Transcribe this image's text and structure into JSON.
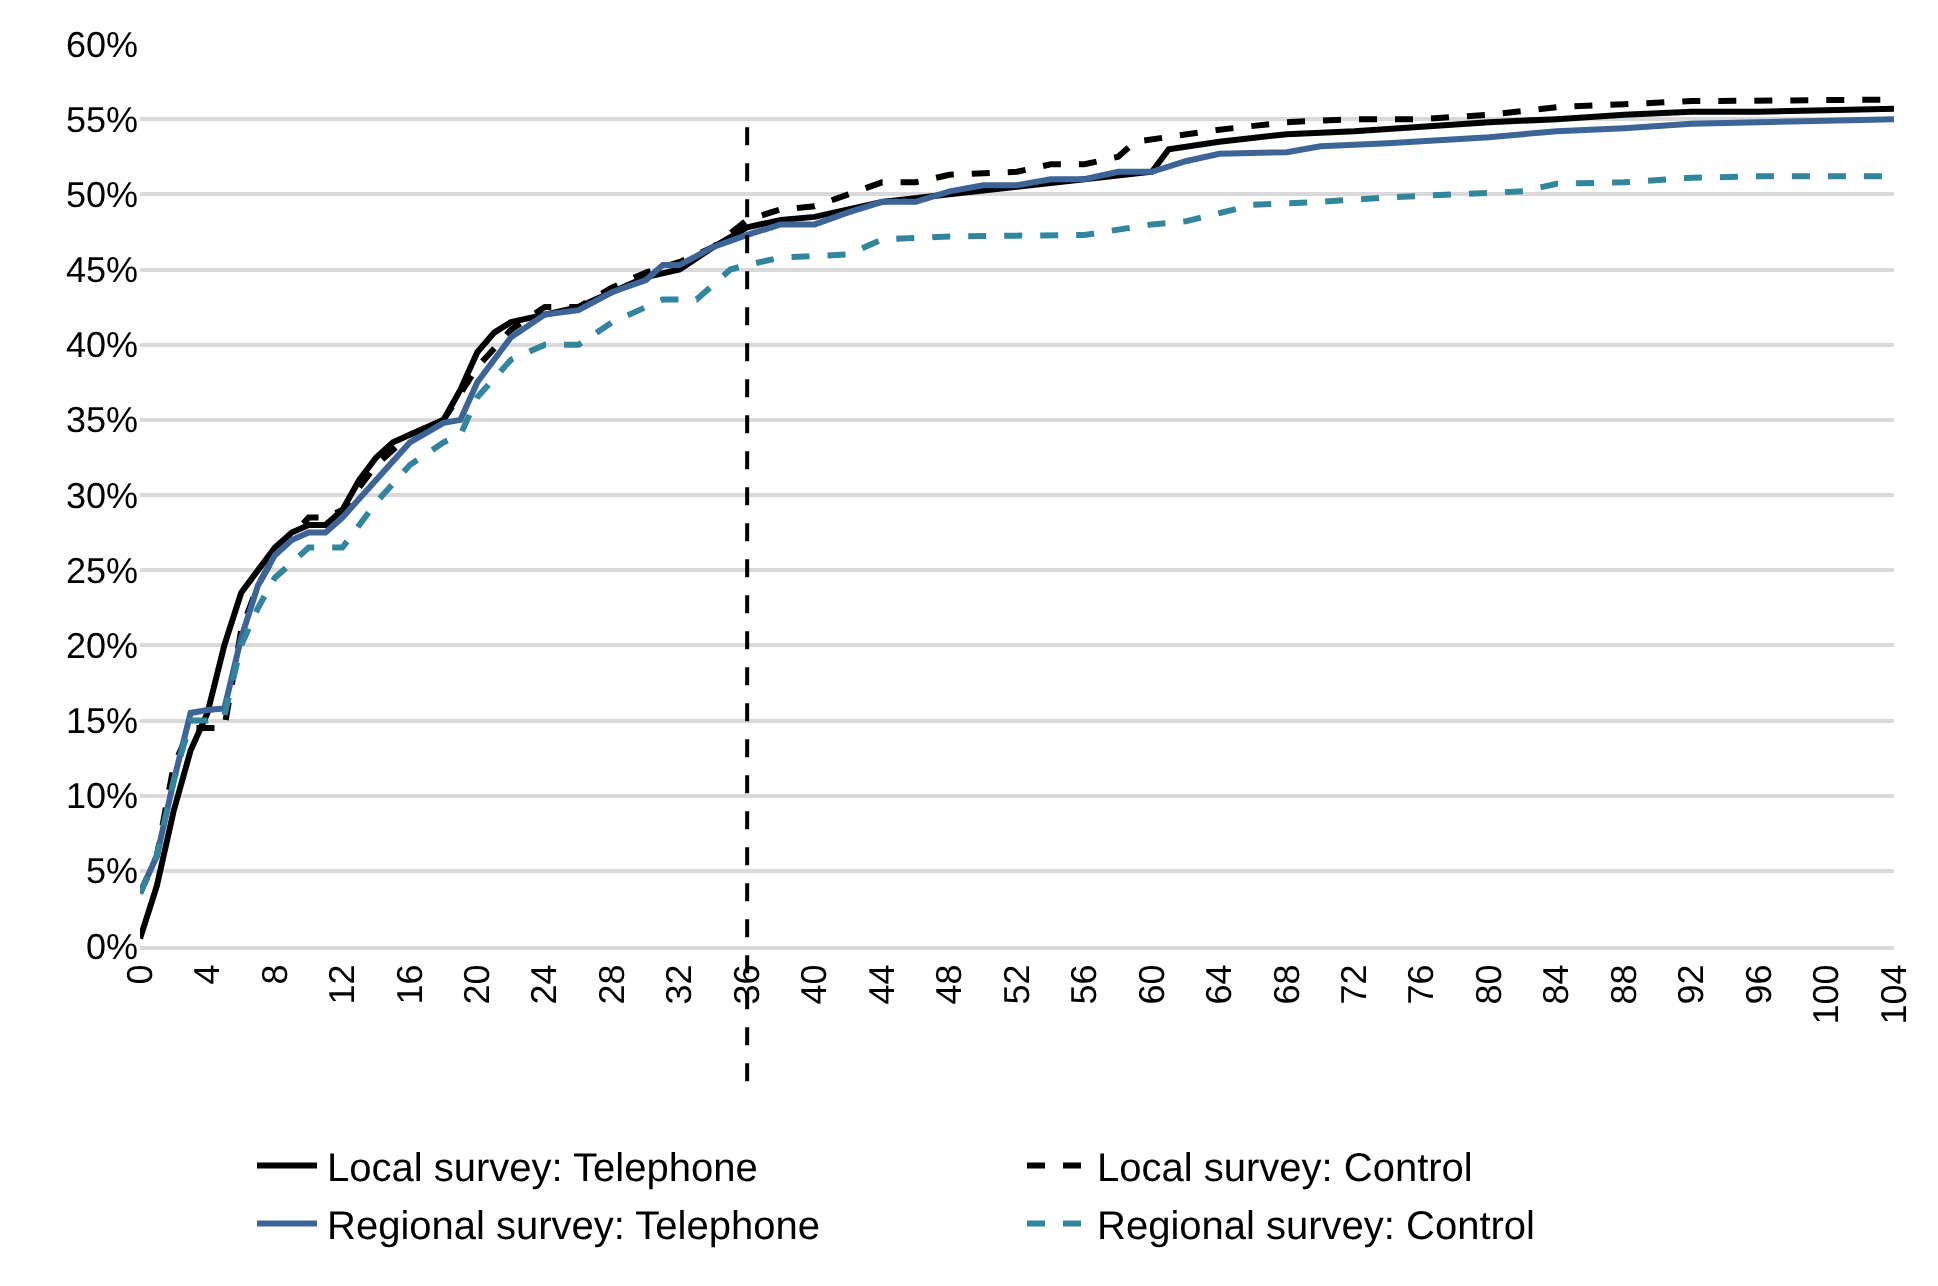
{
  "chart_data": {
    "type": "line",
    "xlim": [
      0,
      104
    ],
    "xticks": [
      0,
      4,
      8,
      12,
      16,
      20,
      24,
      28,
      32,
      36,
      40,
      44,
      48,
      52,
      56,
      60,
      64,
      68,
      72,
      76,
      80,
      84,
      88,
      92,
      96,
      100,
      104
    ],
    "ylim": [
      0,
      60
    ],
    "yticks": [
      {
        "value": 0,
        "label": "0%"
      },
      {
        "value": 5,
        "label": "5%"
      },
      {
        "value": 10,
        "label": "10%"
      },
      {
        "value": 15,
        "label": "15%"
      },
      {
        "value": 20,
        "label": "20%"
      },
      {
        "value": 25,
        "label": "25%"
      },
      {
        "value": 30,
        "label": "30%"
      },
      {
        "value": 35,
        "label": "35%"
      },
      {
        "value": 40,
        "label": "40%"
      },
      {
        "value": 45,
        "label": "45%"
      },
      {
        "value": 50,
        "label": "50%"
      },
      {
        "value": 55,
        "label": "55%"
      },
      {
        "value": 60,
        "label": "60%"
      }
    ],
    "grid": "y",
    "legend": "bottom",
    "marker": "none",
    "ref_lines": [
      {
        "axis": "x",
        "value": 36,
        "label": null,
        "color": "#000000",
        "line_style": "dashed"
      }
    ],
    "series": [
      {
        "name": "Local survey: Telephone",
        "color": "#000000",
        "line_style": "solid",
        "x": [
          0,
          1,
          2,
          3,
          4,
          5,
          6,
          7,
          8,
          9,
          10,
          11,
          12,
          13,
          14,
          15,
          16,
          17,
          18,
          19,
          20,
          21,
          22,
          24,
          26,
          28,
          30,
          32,
          34,
          36,
          38,
          40,
          42,
          44,
          48,
          52,
          56,
          60,
          61,
          64,
          68,
          72,
          76,
          80,
          84,
          88,
          92,
          96,
          100,
          104
        ],
        "values": [
          0.5,
          4,
          9,
          13,
          15.5,
          20,
          23.5,
          25,
          26.5,
          27.5,
          28,
          28,
          29,
          31,
          32.5,
          33.5,
          34,
          34.5,
          35,
          37,
          39.5,
          40.8,
          41.5,
          42,
          42.5,
          43.5,
          44.5,
          45,
          46.5,
          47.8,
          48.3,
          48.5,
          49,
          49.5,
          50,
          50.5,
          51,
          51.5,
          53,
          53.5,
          54,
          54.2,
          54.5,
          54.8,
          55,
          55.3,
          55.5,
          55.5,
          55.6,
          55.7
        ]
      },
      {
        "name": "Local survey: Control",
        "color": "#000000",
        "line_style": "dashed",
        "x": [
          0,
          1,
          2,
          3,
          4,
          5,
          6,
          7,
          8,
          10,
          11,
          12,
          14,
          16,
          18,
          20,
          22,
          24,
          26,
          28,
          30,
          32,
          34,
          36,
          38,
          40,
          42,
          44,
          46,
          48,
          52,
          54,
          56,
          58,
          59,
          64,
          68,
          72,
          76,
          80,
          84,
          88,
          92,
          104
        ],
        "values": [
          3.5,
          6,
          12,
          14.5,
          14.5,
          14.5,
          21,
          24,
          26,
          28.5,
          28.5,
          29,
          32,
          34,
          35,
          38.5,
          41,
          42.5,
          42.5,
          43.8,
          44.8,
          45.5,
          46.5,
          48.3,
          49,
          49.2,
          50,
          50.8,
          50.8,
          51.3,
          51.5,
          52,
          52,
          52.5,
          53.5,
          54.3,
          54.8,
          55,
          55,
          55.3,
          55.8,
          56,
          56.2,
          56.3
        ]
      },
      {
        "name": "Regional survey: Telephone",
        "color": "#3c6496",
        "line_style": "solid",
        "x": [
          0,
          1,
          2,
          3,
          4,
          5,
          6,
          7,
          8,
          9,
          10,
          11,
          12,
          14,
          16,
          18,
          19,
          20,
          22,
          24,
          26,
          28,
          30,
          31,
          32,
          34,
          36,
          38,
          40,
          42,
          44,
          46,
          48,
          50,
          52,
          54,
          56,
          58,
          60,
          62,
          64,
          68,
          70,
          74,
          80,
          84,
          88,
          92,
          96,
          100,
          104
        ],
        "values": [
          3.5,
          6,
          11,
          15.5,
          15.7,
          15.8,
          20.5,
          24,
          26,
          27,
          27.5,
          27.5,
          28.5,
          31,
          33.5,
          34.8,
          35,
          37.5,
          40.5,
          42,
          42.3,
          43.5,
          44.3,
          45.3,
          45.3,
          46.5,
          47.3,
          48,
          48,
          48.8,
          49.5,
          49.5,
          50.2,
          50.6,
          50.6,
          51,
          51,
          51.5,
          51.5,
          52.2,
          52.7,
          52.8,
          53.2,
          53.4,
          53.8,
          54.2,
          54.4,
          54.7,
          54.8,
          54.9,
          55
        ]
      },
      {
        "name": "Regional survey: Control",
        "color": "#31859c",
        "line_style": "dashed",
        "x": [
          0,
          1,
          2,
          3,
          4,
          5,
          6,
          7,
          8,
          10,
          12,
          14,
          16,
          18,
          19,
          20,
          22,
          24,
          26,
          28,
          30,
          31,
          33,
          35,
          36,
          38,
          42,
          44,
          48,
          56,
          60,
          62,
          66,
          70,
          74,
          78,
          82,
          84,
          88,
          92,
          96,
          104
        ],
        "values": [
          3.5,
          6,
          11,
          15,
          15,
          15.3,
          20,
          22.5,
          24.5,
          26.5,
          26.5,
          29.5,
          32,
          33.5,
          34,
          36.5,
          39,
          40,
          40,
          41.5,
          42.5,
          43,
          43,
          45,
          45.3,
          45.8,
          46,
          47,
          47.2,
          47.3,
          48,
          48.2,
          49.3,
          49.5,
          49.8,
          50,
          50.2,
          50.7,
          50.8,
          51.1,
          51.2,
          51.2
        ]
      }
    ]
  }
}
